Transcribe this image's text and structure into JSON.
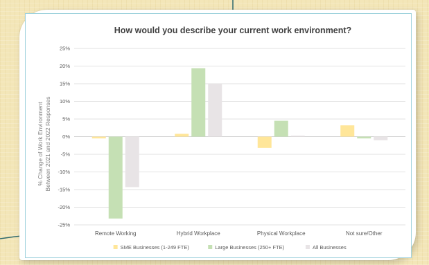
{
  "chart_data": {
    "type": "bar",
    "title": "How would you describe your current work environment?",
    "ylabel_line1": "% Change of Work Environment",
    "ylabel_line2": "Between 2021 and 2022 Responses",
    "xlabel": "",
    "categories": [
      "Remote Working",
      "Hybrid Workplace",
      "Physical Workplace",
      "Not sure/Other"
    ],
    "series": [
      {
        "name": "SME Businesses (1-249 FTE)",
        "color": "#ffe699",
        "values": [
          -0.5,
          0.8,
          -3.2,
          3.2
        ]
      },
      {
        "name": "Large Businesses (250+ FTE)",
        "color": "#c5e0b4",
        "values": [
          -23.2,
          19.4,
          4.5,
          -0.5
        ]
      },
      {
        "name": "All Businesses",
        "color": "#e8e4e6",
        "values": [
          -14.3,
          15.0,
          0.3,
          -1.0
        ]
      }
    ],
    "ylim": [
      -25,
      25
    ],
    "yticks": [
      25,
      20,
      15,
      10,
      5,
      0,
      -5,
      -10,
      -15,
      -20,
      -25
    ],
    "ytick_labels": [
      "25%",
      "20%",
      "15%",
      "10%",
      "5%",
      "0%",
      "-5%",
      "-10%",
      "-15%",
      "-20%",
      "-25%"
    ],
    "grid": true,
    "legend_position": "bottom"
  },
  "colors": {
    "gridline": "#d9d9d9",
    "zero_line": "#bfbfbf",
    "frame_border": "#9fd2dd",
    "decor_line": "#2f6a6e"
  }
}
